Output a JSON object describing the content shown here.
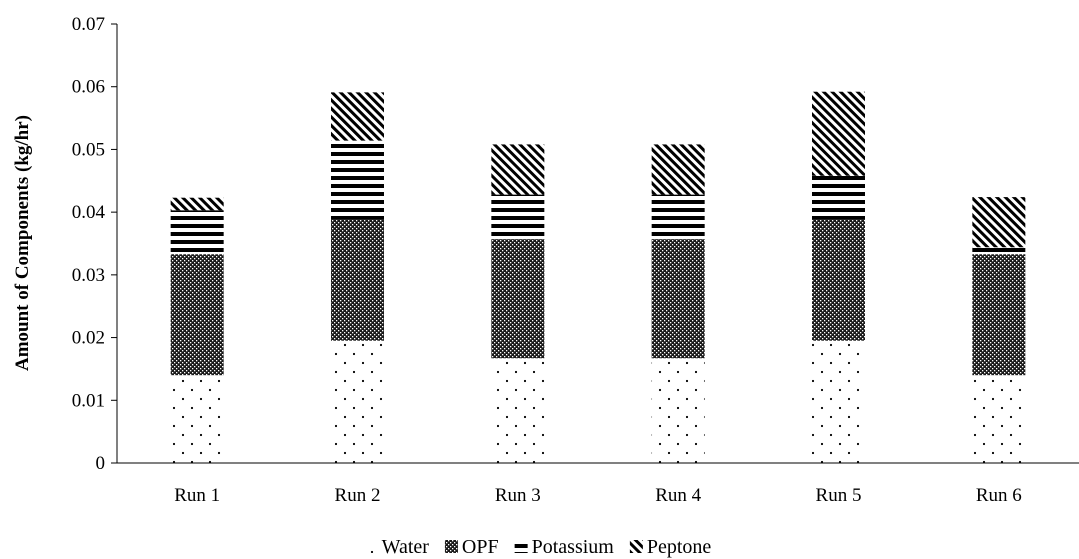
{
  "chart_data": {
    "type": "bar",
    "stacked": true,
    "title": "",
    "xlabel": "",
    "ylabel": "Amount of Components (kg/hr)",
    "ylim": [
      0,
      0.07
    ],
    "yticks": [
      "0",
      "0.01",
      "0.02",
      "0.03",
      "0.04",
      "0.05",
      "0.06",
      "0.07"
    ],
    "grid": false,
    "legend_position": "bottom",
    "categories": [
      "Run 1",
      "Run 2",
      "Run 3",
      "Run 4",
      "Run 5",
      "Run 6"
    ],
    "series": [
      {
        "name": "Water",
        "pattern": "dots",
        "values": [
          0.014,
          0.0195,
          0.0167,
          0.0167,
          0.0195,
          0.014
        ]
      },
      {
        "name": "OPF",
        "pattern": "dense-dots",
        "values": [
          0.0193,
          0.0193,
          0.019,
          0.019,
          0.0193,
          0.0193
        ]
      },
      {
        "name": "Potassium",
        "pattern": "horizontal-stripes",
        "values": [
          0.007,
          0.0126,
          0.0071,
          0.0071,
          0.007,
          0.0011
        ]
      },
      {
        "name": "Peptone",
        "pattern": "diagonal-stripes",
        "values": [
          0.002,
          0.0077,
          0.008,
          0.008,
          0.0134,
          0.008
        ]
      }
    ],
    "colors": {
      "ink": "#000000",
      "background": "#ffffff"
    }
  }
}
